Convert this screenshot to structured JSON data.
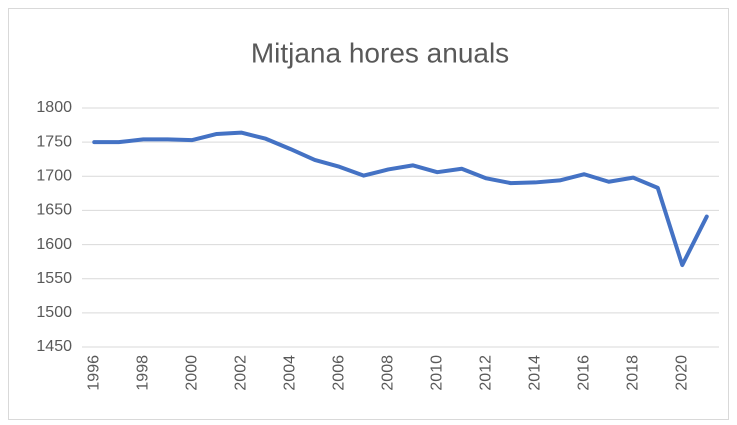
{
  "chart_data": {
    "type": "line",
    "title": "Mitjana hores anuals",
    "categories": [
      "1996",
      null,
      "1998",
      null,
      "2000",
      null,
      "2002",
      null,
      "2004",
      null,
      "2006",
      null,
      "2008",
      null,
      "2010",
      null,
      "2012",
      null,
      "2014",
      null,
      "2016",
      null,
      "2018",
      null,
      "2020",
      null
    ],
    "series": [
      {
        "name": "Mitjana hores anuals",
        "color": "#4472c4",
        "values": [
          1750,
          1750,
          1754,
          1754,
          1753,
          1762,
          1764,
          1755,
          1740,
          1724,
          1714,
          1701,
          1710,
          1716,
          1706,
          1711,
          1697,
          1690,
          1691,
          1694,
          1703,
          1692,
          1698,
          1683,
          1570,
          1641
        ]
      }
    ],
    "ylim": [
      1450,
      1800
    ],
    "yticks": [
      1450,
      1500,
      1550,
      1600,
      1650,
      1700,
      1750,
      1800
    ],
    "grid": true
  }
}
